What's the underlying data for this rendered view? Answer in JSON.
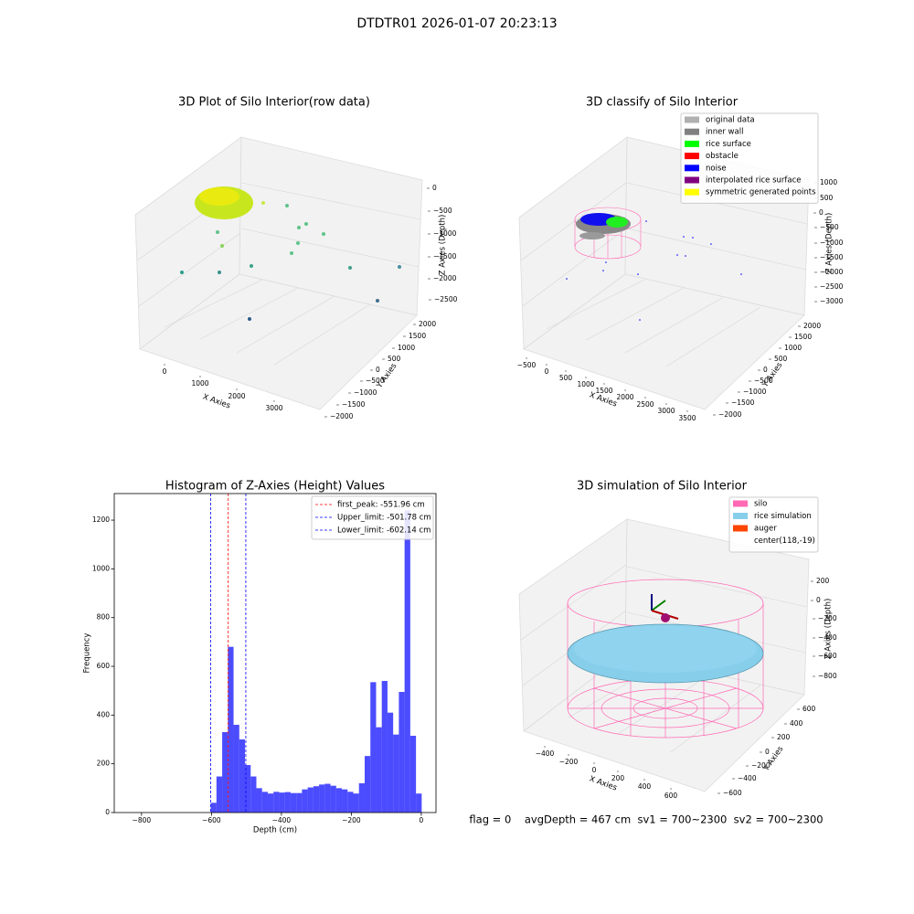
{
  "title": "DTDTR01 2026-01-07 20:23:13",
  "chart_data": [
    {
      "type": "scatter3d",
      "title": "3D Plot of Silo Interior(row data)",
      "xlabel": "X Axies",
      "ylabel": "Y Axies",
      "zlabel": "Z Axies (Depth)",
      "xticks": [
        0,
        1000,
        2000,
        3000
      ],
      "yticks": [
        2000,
        1500,
        1000,
        500,
        0,
        {
          "value": -500,
          "label": "−500"
        },
        {
          "value": -1000,
          "label": "−1000"
        },
        {
          "value": -1500,
          "label": "−1500"
        },
        {
          "value": -2000,
          "label": "−2000"
        }
      ],
      "zticks": [
        0,
        {
          "value": -500,
          "label": "−500"
        },
        {
          "value": -1000,
          "label": "−1000"
        },
        {
          "value": -1500,
          "label": "−1500"
        },
        {
          "value": -2000,
          "label": "−2000"
        },
        {
          "value": -2500,
          "label": "−2500"
        }
      ]
    },
    {
      "type": "scatter3d",
      "title": "3D classify of Silo Interior",
      "xlabel": "X Axies",
      "ylabel": "Y Axies",
      "zlabel": "Z Axies (Depth)",
      "xticks": [
        {
          "value": -500,
          "label": "−500"
        },
        0,
        500,
        1000,
        1500,
        2000,
        2500,
        3000,
        3500
      ],
      "yticks": [
        2000,
        1500,
        1000,
        500,
        0,
        {
          "value": -500,
          "label": "−500"
        },
        {
          "value": -1000,
          "label": "−1000"
        },
        {
          "value": -1500,
          "label": "−1500"
        },
        {
          "value": -2000,
          "label": "−2000"
        }
      ],
      "zticks": [
        1000,
        500,
        0,
        {
          "value": -500,
          "label": "−500"
        },
        {
          "value": -1000,
          "label": "−1000"
        },
        {
          "value": -1500,
          "label": "−1500"
        },
        {
          "value": -2000,
          "label": "−2000"
        },
        {
          "value": -2500,
          "label": "−2500"
        },
        {
          "value": -3000,
          "label": "−3000"
        }
      ],
      "legend": [
        {
          "name": "original data",
          "color": "#b0b0b0"
        },
        {
          "name": "inner wall",
          "color": "#808080"
        },
        {
          "name": "rice surface",
          "color": "#00ff00"
        },
        {
          "name": "obstacle",
          "color": "#ff0000"
        },
        {
          "name": "noise",
          "color": "#0000ff"
        },
        {
          "name": "interpolated rice surface",
          "color": "#800080"
        },
        {
          "name": "symmetric generated points",
          "color": "#ffff00"
        }
      ]
    },
    {
      "type": "histogram",
      "title": "Histogram of Z-Axies (Height) Values",
      "xlabel": "Depth (cm)",
      "ylabel": "Frequency",
      "color": "#0000ff",
      "bins": [
        -602.0,
        -585.7,
        -569.4,
        -553.1,
        -536.8,
        -520.5,
        -504.2,
        -487.9,
        -471.6,
        -455.3,
        -439.0,
        -422.7,
        -406.4,
        -390.1,
        -373.8,
        -357.5,
        -341.2,
        -324.9,
        -308.6,
        -292.3,
        -276.0,
        -259.7,
        -243.4,
        -227.1,
        -210.8,
        -194.5,
        -178.2,
        -161.9,
        -145.6,
        -129.3,
        -113.0,
        -96.7,
        -80.4,
        -64.1,
        -47.8,
        -31.5,
        -15.2,
        1.1
      ],
      "counts": [
        40,
        148,
        330,
        680,
        360,
        300,
        195,
        148,
        100,
        85,
        78,
        85,
        82,
        84,
        80,
        80,
        95,
        103,
        108,
        115,
        118,
        110,
        100,
        95,
        85,
        78,
        120,
        232,
        535,
        350,
        540,
        410,
        320,
        495,
        1240,
        315,
        78
      ],
      "lines": [
        {
          "label": "first_peak: -551.96 cm",
          "value": -551.96,
          "color": "#ff0000"
        },
        {
          "label": "Upper_limit: -501.78 cm",
          "value": -501.78,
          "color": "#0000ff"
        },
        {
          "label": "Lower_limit: -602.14 cm",
          "value": -602.14,
          "color": "#0000ff"
        }
      ],
      "xlim": [
        -878,
        42
      ],
      "ylim": [
        0,
        1309
      ],
      "xticks": [
        {
          "value": -800,
          "label": "−800"
        },
        {
          "value": -600,
          "label": "−600"
        },
        {
          "value": -400,
          "label": "−400"
        },
        {
          "value": -200,
          "label": "−200"
        },
        0
      ],
      "yticks": [
        0,
        200,
        400,
        600,
        800,
        1000,
        1200
      ],
      "legend_corner": "upper right"
    },
    {
      "type": "surface3d",
      "title": "3D simulation of Silo Interior",
      "xlabel": "X Axies",
      "ylabel": "Y Axies",
      "zlabel": "Z Axies (Depth)",
      "xticks": [
        {
          "value": -400,
          "label": "−400"
        },
        {
          "value": -200,
          "label": "−200"
        },
        0,
        200,
        400,
        600
      ],
      "yticks": [
        600,
        400,
        200,
        0,
        {
          "value": -200,
          "label": "−200"
        },
        {
          "value": -400,
          "label": "−400"
        },
        {
          "value": -600,
          "label": "−600"
        }
      ],
      "zticks": [
        200,
        0,
        {
          "value": -200,
          "label": "−200"
        },
        {
          "value": -400,
          "label": "−400"
        },
        {
          "value": -600,
          "label": "−600"
        },
        {
          "value": -800,
          "label": "−800"
        }
      ],
      "legend": [
        {
          "name": "silo",
          "color": "#ff69b4"
        },
        {
          "name": "rice simulation",
          "color": "#87ceeb"
        },
        {
          "name": "auger",
          "color": "#ff4500"
        },
        {
          "name": "center(118,-19)",
          "color": null
        }
      ]
    }
  ],
  "footer": "flag = 0    avgDepth = 467 cm  sv1 = 700~2300  sv2 = 700~2300"
}
